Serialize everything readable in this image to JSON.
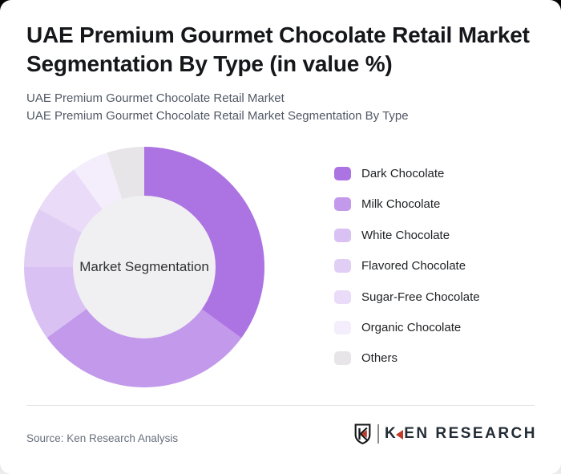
{
  "header": {
    "title": "UAE Premium Gourmet Chocolate Retail Market Segmentation By Type (in value %)",
    "subtitle_lines": [
      "UAE Premium Gourmet Chocolate Retail Market",
      "UAE Premium Gourmet Chocolate Retail Market Segmentation By Type"
    ]
  },
  "chart_data": {
    "type": "pie",
    "variant": "donut",
    "title": "UAE Premium Gourmet Chocolate Retail Market Segmentation By Type (in value %)",
    "center_label": "Market Segmentation",
    "legend_position": "right",
    "start_angle_deg": 0,
    "direction": "clockwise",
    "unit": "value %",
    "categories": [
      "Dark Chocolate",
      "Milk Chocolate",
      "White Chocolate",
      "Flavored Chocolate",
      "Sugar-Free Chocolate",
      "Organic Chocolate",
      "Others"
    ],
    "values": [
      35,
      30,
      10,
      8,
      7,
      5,
      5
    ],
    "colors": [
      "#ac73e2",
      "#c399eb",
      "#d9c2f3",
      "#e1cef5",
      "#eadbf8",
      "#f4edfb",
      "#e7e5e8"
    ],
    "hole_color": "#f0eff1"
  },
  "footer": {
    "source": "Source: Ken Research Analysis",
    "logo": {
      "brand_text_k": "K",
      "brand_text_rest": "EN RESEARCH",
      "accent_color": "#c0392b",
      "ink_color": "#15171a"
    }
  }
}
